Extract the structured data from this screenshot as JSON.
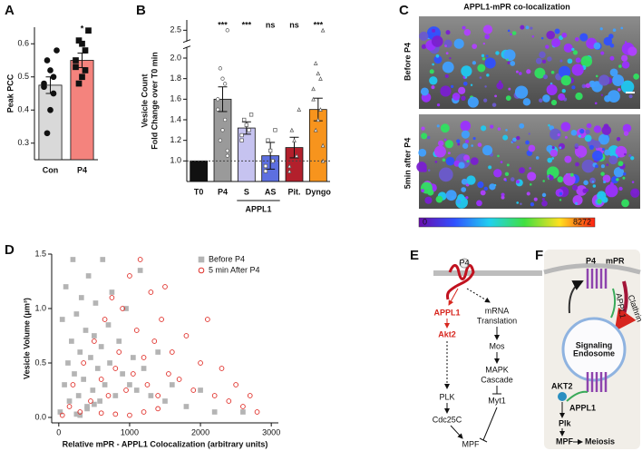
{
  "chart_data": [
    {
      "type": "bar",
      "panel": "A",
      "ylabel": "Peak PCC",
      "categories": [
        "Con",
        "P4"
      ],
      "values": [
        0.475,
        0.55
      ],
      "errors": [
        0.025,
        0.022
      ],
      "colors": [
        "#d9d9d9",
        "#f4837d"
      ],
      "points": [
        [
          0.58,
          0.55,
          0.52,
          0.5,
          0.48,
          0.47,
          0.45,
          0.4,
          0.33
        ],
        [
          0.64,
          0.61,
          0.6,
          0.58,
          0.55,
          0.53,
          0.52,
          0.5,
          0.48
        ]
      ],
      "point_marker": [
        "circle",
        "square"
      ],
      "annotations": [
        {
          "x": "P4",
          "text": "*"
        }
      ],
      "ylim": [
        0.25,
        0.65
      ],
      "yticks": [
        0.3,
        0.4,
        0.5,
        0.6
      ]
    },
    {
      "type": "bar",
      "panel": "B",
      "ylabel": [
        "Vesicle Count",
        "Fold Change over T0 min"
      ],
      "categories": [
        "T0",
        "P4",
        "S",
        "AS",
        "Pit.",
        "Dyngo"
      ],
      "values": [
        1,
        1.6,
        1.32,
        1.05,
        1.13,
        1.5
      ],
      "errors": [
        0,
        0.12,
        0.06,
        0.13,
        0.1,
        0.11
      ],
      "colors": [
        "#111111",
        "#9a9a9a",
        "#c6c3f0",
        "#5d6fe0",
        "#b3202c",
        "#f7941d"
      ],
      "points": [
        [],
        [
          2.5,
          1.9,
          1.8,
          1.75,
          1.6,
          1.5,
          1.4,
          1.3,
          1.2,
          1.1,
          1.05
        ],
        [
          1.45,
          1.4,
          1.35,
          1.3,
          1.25,
          1.2
        ],
        [
          1.3,
          1.2,
          1.1,
          1.0,
          0.95,
          0.9
        ],
        [
          1.5,
          1.3,
          1.2,
          1.05,
          0.95,
          0.9
        ],
        [
          2.5,
          1.95,
          1.85,
          1.8,
          1.7,
          1.6,
          1.5,
          1.4,
          1.3,
          1.15,
          1.0
        ]
      ],
      "point_marker": [
        "circle",
        "circle",
        "square",
        "square",
        "triangle",
        "triangle"
      ],
      "annotations": [
        {
          "x": "P4",
          "text": "***"
        },
        {
          "x": "S",
          "text": "***"
        },
        {
          "x": "AS",
          "text": "ns"
        },
        {
          "x": "Pit.",
          "text": "ns"
        },
        {
          "x": "Dyngo",
          "text": "***"
        }
      ],
      "groups": [
        {
          "label": "APPL1",
          "from": "S",
          "to": "AS"
        }
      ],
      "hline": 1,
      "ylim": [
        0.8,
        2.6
      ],
      "ybreak": [
        2.1,
        2.4
      ],
      "yticks": [
        {
          "value": 1,
          "label": "1.0"
        },
        1.2,
        1.4,
        1.6,
        1.8,
        {
          "value": 2,
          "label": "2.0"
        },
        2.5
      ]
    },
    {
      "type": "scatter",
      "panel": "D",
      "xlabel": "Relative mPR - APPL1 Colocalization (arbitrary units)",
      "ylabel": "Vesicle Volume (μm³)",
      "legend": "upper right",
      "series": [
        {
          "name": "Before P4",
          "color": "#b4b4b4",
          "marker": "square",
          "x": [
            20,
            50,
            80,
            100,
            130,
            150,
            180,
            200,
            220,
            250,
            280,
            300,
            320,
            350,
            380,
            400,
            420,
            450,
            480,
            500,
            520,
            550,
            580,
            600,
            620,
            650,
            700,
            720,
            750,
            800,
            850,
            900,
            950,
            1000,
            1050,
            1100,
            1150,
            1200,
            1300,
            1400,
            1500,
            1600,
            1800,
            2000,
            2200,
            2600,
            300,
            400,
            500,
            250
          ],
          "values": [
            0.05,
            0.9,
            0.3,
            1.2,
            0.5,
            0.15,
            0.7,
            1.45,
            0.4,
            0.95,
            0.2,
            0.6,
            1.1,
            0.35,
            0.8,
            0.1,
            1.3,
            0.55,
            0.25,
            0.75,
            1.05,
            0.45,
            0.15,
            0.65,
            1.45,
            0.3,
            0.85,
            0.5,
            1.15,
            0.2,
            0.7,
            0.4,
            1.0,
            0.3,
            0.55,
            0.25,
            1.35,
            0.45,
            0.2,
            0.6,
            0.15,
            0.3,
            0.1,
            0.25,
            0.05,
            0.05,
            0.02,
            0.08,
            0.12,
            0.03
          ]
        },
        {
          "name": "5 min After P4",
          "color": "#e0302a",
          "marker": "circle",
          "x": [
            50,
            150,
            200,
            300,
            350,
            450,
            500,
            600,
            650,
            700,
            750,
            800,
            850,
            900,
            950,
            1000,
            1050,
            1100,
            1150,
            1200,
            1250,
            1300,
            1350,
            1400,
            1450,
            1500,
            1550,
            1600,
            1700,
            1800,
            1900,
            2000,
            2100,
            2200,
            2300,
            2400,
            2500,
            2600,
            2700,
            2800,
            1000,
            1200,
            800,
            1400,
            600
          ],
          "values": [
            0.02,
            0.1,
            0.3,
            0.05,
            0.5,
            0.15,
            0.7,
            0.35,
            0.9,
            0.2,
            1.1,
            0.45,
            0.6,
            1.0,
            0.25,
            1.3,
            0.4,
            0.8,
            1.45,
            0.55,
            0.3,
            1.15,
            0.7,
            0.2,
            0.9,
            1.2,
            0.4,
            0.6,
            0.35,
            0.75,
            0.25,
            0.5,
            0.9,
            0.2,
            0.45,
            0.15,
            0.3,
            0.1,
            0.2,
            0.05,
            0.02,
            0.05,
            0.03,
            0.08,
            0.04
          ]
        }
      ],
      "xlim": [
        -100,
        3100
      ],
      "xticks": [
        0,
        1000,
        2000,
        3000
      ],
      "ylim": [
        -0.05,
        1.5
      ],
      "yticks": [
        {
          "value": 0,
          "label": "0.0"
        },
        0.5,
        {
          "value": 1,
          "label": "1.0"
        },
        1.5
      ]
    }
  ],
  "panel_c": {
    "label": "C",
    "title": "APPL1-mPR co-localization",
    "rows": [
      "Before P4",
      "5min after P4"
    ],
    "colorbar_range": [
      0,
      8272
    ]
  },
  "diagram_e": {
    "label": "E",
    "ligand": "P4",
    "nodes": {
      "appl1": "APPL1",
      "akt2": "Akt2",
      "mrna": [
        "mRNA",
        "Translation"
      ],
      "mos": "Mos",
      "mapk": [
        "MAPK",
        "Cascade"
      ],
      "myt1": "Myt1",
      "plk": "PLK",
      "cdc25c": "Cdc25C",
      "mpf": "MPF"
    }
  },
  "diagram_f": {
    "label": "F",
    "ligand": "P4",
    "receptor": "mPR",
    "clathrin": "Clathrin",
    "appl1_arrow": "APPL1",
    "endosome": [
      "Signaling",
      "Endosome"
    ],
    "akt2": "AKT2",
    "appl1": "APPL1",
    "plk": "Plk",
    "mpf": "MPF",
    "meiosis": "Meiosis"
  }
}
